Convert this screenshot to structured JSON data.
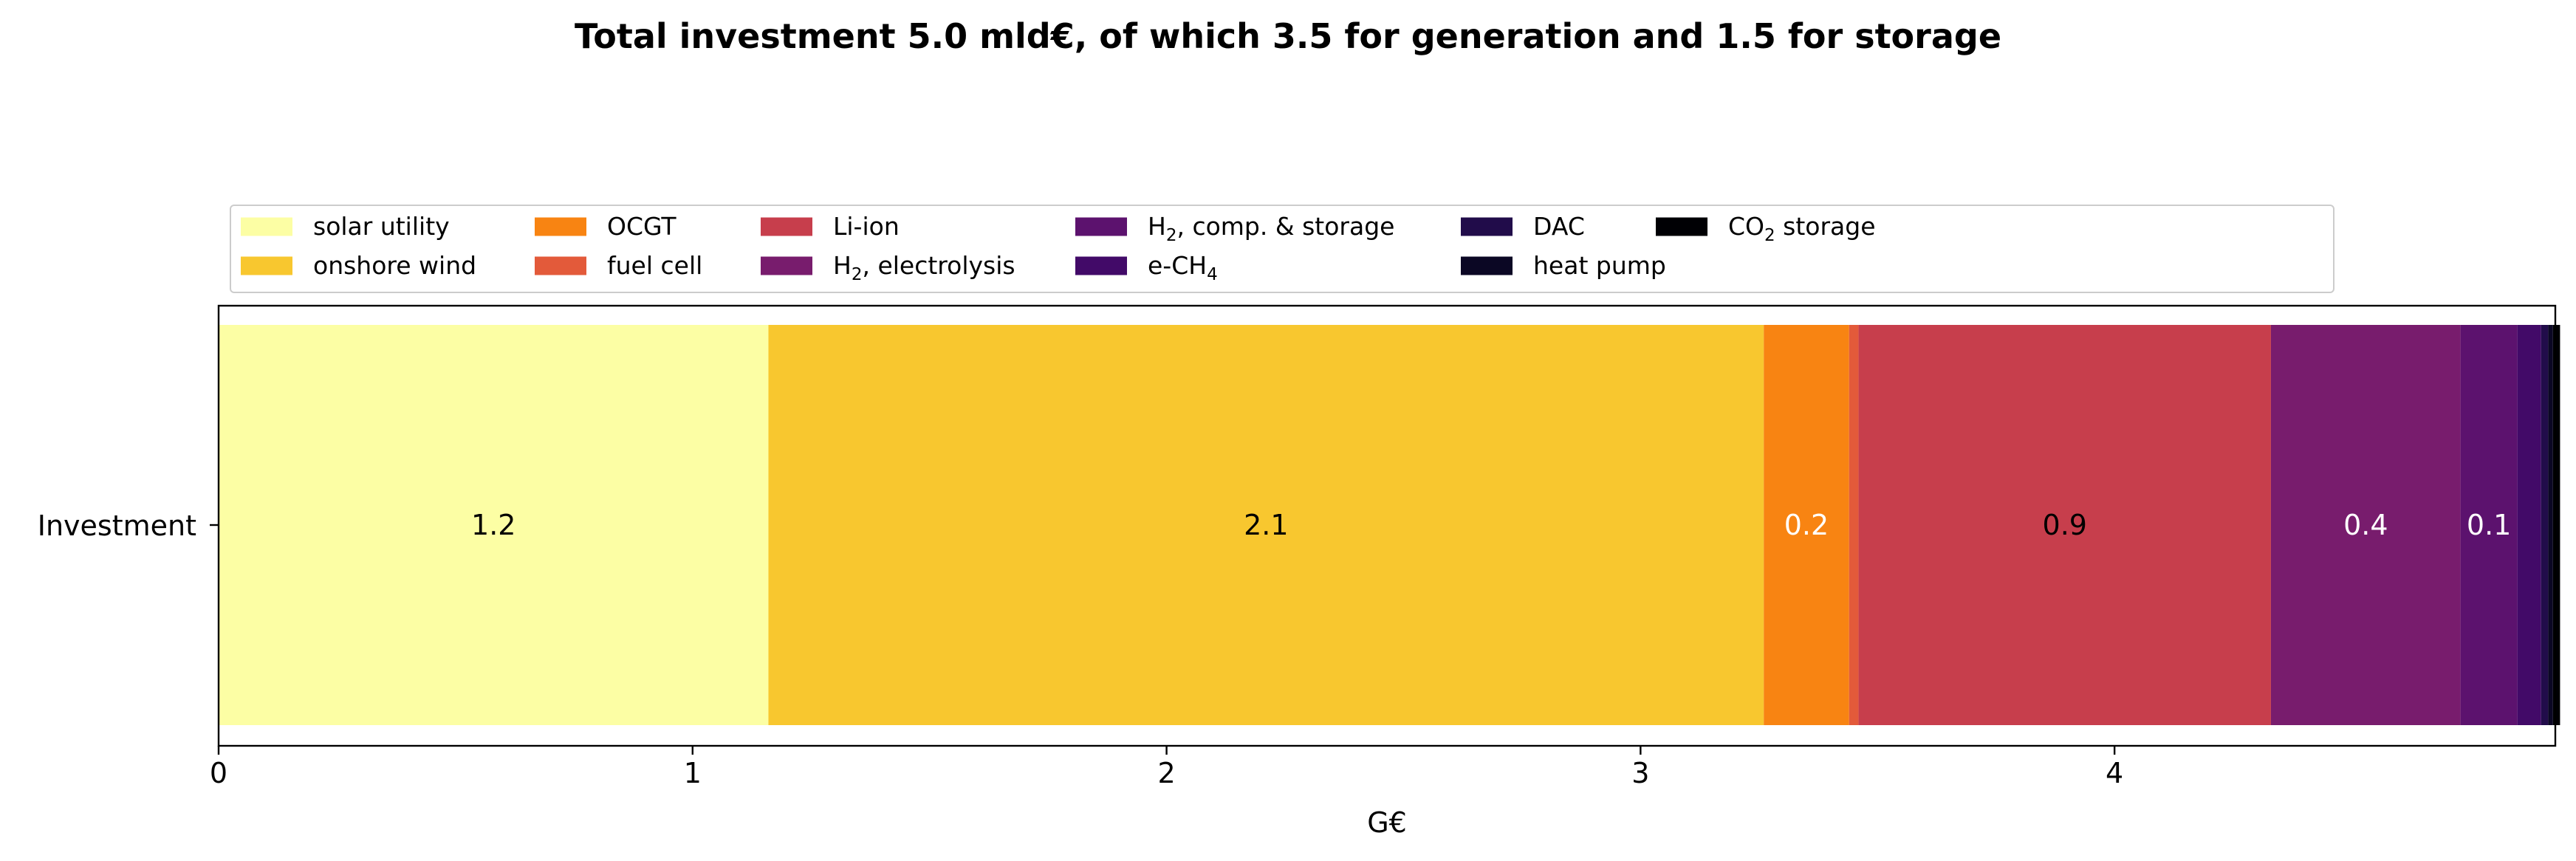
{
  "chart_data": {
    "type": "bar",
    "orientation": "horizontal",
    "stacked": true,
    "title": "Total investment 5.0 mld€, of which 3.5 for generation and 1.5 for storage",
    "xlabel": "G€",
    "ylabel": "",
    "categories": [
      "Investment"
    ],
    "xlim": [
      0,
      4.93
    ],
    "xticks": [
      "0",
      "1",
      "2",
      "3",
      "4"
    ],
    "grid": false,
    "legend_position": "top",
    "series": [
      {
        "name": "solar utility",
        "value": 1.16,
        "color": "#fcfea4",
        "label": "1.2",
        "label_color": "#000000"
      },
      {
        "name": "onshore wind",
        "value": 2.1,
        "color": "#f8c72f",
        "label": "2.1",
        "label_color": "#000000"
      },
      {
        "name": "OCGT",
        "value": 0.18,
        "color": "#f88412",
        "label": "0.2",
        "label_color": "#ffffff"
      },
      {
        "name": "fuel cell",
        "value": 0.02,
        "color": "#e35a3a",
        "label": "",
        "label_color": "#000000"
      },
      {
        "name": "Li-ion",
        "value": 0.87,
        "color": "#c73e4c",
        "label": "0.9",
        "label_color": "#000000"
      },
      {
        "name": "H₂, electrolysis",
        "name_base": "H",
        "name_sub": "2",
        "name_rest": ", electrolysis",
        "value": 0.4,
        "color": "#781c6d",
        "label": "0.4",
        "label_color": "#ffffff"
      },
      {
        "name": "H₂, comp. & storage",
        "name_base": "H",
        "name_sub": "2",
        "name_rest": ", comp. & storage",
        "value": 0.12,
        "color": "#5c126e",
        "label": "0.1",
        "label_color": "#ffffff"
      },
      {
        "name": "e-CH₄",
        "name_base": "e-CH",
        "name_sub": "4",
        "name_rest": "",
        "value": 0.05,
        "color": "#420a68",
        "label": "",
        "label_color": "#ffffff"
      },
      {
        "name": "DAC",
        "value": 0.015,
        "color": "#210c4a",
        "label": "",
        "label_color": "#ffffff"
      },
      {
        "name": "heat pump",
        "value": 0.01,
        "color": "#0b0724",
        "label": "",
        "label_color": "#ffffff"
      },
      {
        "name": "CO₂ storage",
        "name_base": "CO",
        "name_sub": "2",
        "name_rest": " storage",
        "value": 0.015,
        "color": "#000004",
        "label": "",
        "label_color": "#ffffff"
      }
    ]
  }
}
